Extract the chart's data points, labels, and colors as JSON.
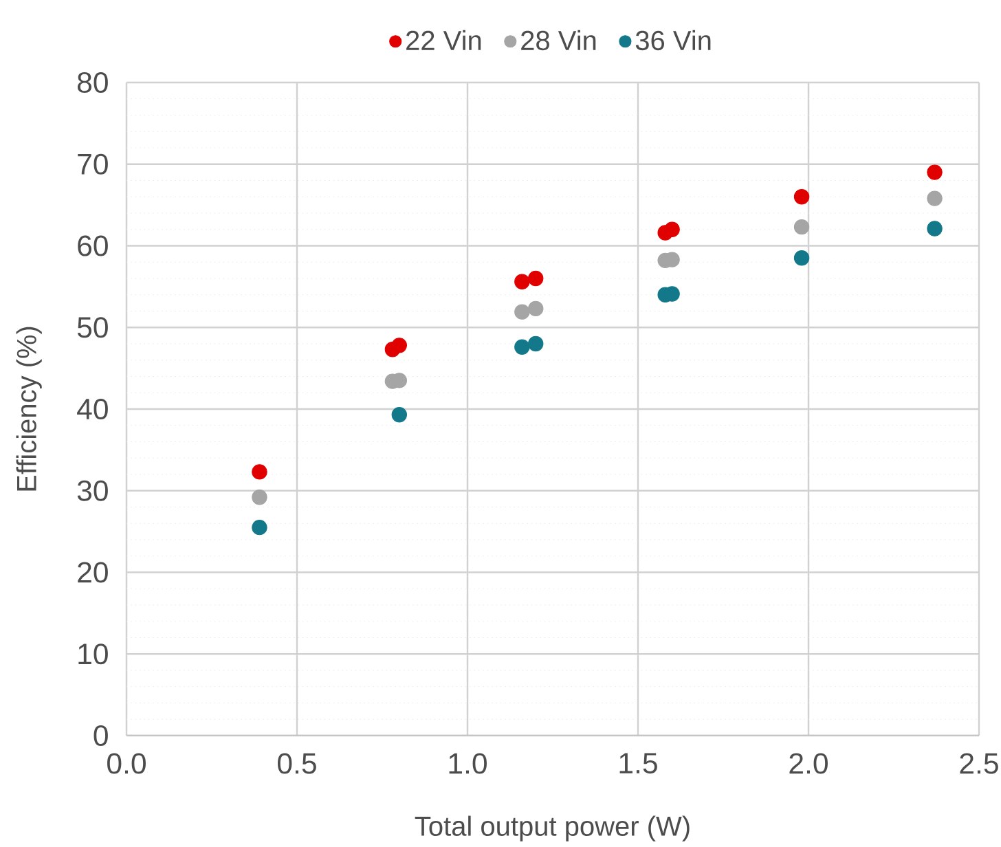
{
  "chart_data": {
    "type": "scatter",
    "xlabel": "Total output power (W)",
    "ylabel": "Efficiency (%)",
    "xlim": [
      0,
      2.5
    ],
    "xticks": [
      {
        "value": 0,
        "label": "0.0"
      },
      {
        "value": 0.5,
        "label": "0.5"
      },
      {
        "value": 1,
        "label": "1.0"
      },
      {
        "value": 1.5,
        "label": "1.5"
      },
      {
        "value": 2,
        "label": "2.0"
      },
      {
        "value": 2.5,
        "label": "2.5"
      }
    ],
    "ylim": [
      0,
      80
    ],
    "yticks": [
      0,
      10,
      20,
      30,
      40,
      50,
      60,
      70,
      80
    ],
    "grid": true,
    "legend": "top",
    "marker": "circle",
    "series": [
      {
        "name": "22 Vin",
        "color": "#e00000",
        "x": [
          0.39,
          0.78,
          0.8,
          1.16,
          1.2,
          1.58,
          1.6,
          1.98,
          2.37
        ],
        "values": [
          32.3,
          47.3,
          47.8,
          55.6,
          56.0,
          61.6,
          62.0,
          66.0,
          69.0
        ]
      },
      {
        "name": "28 Vin",
        "color": "#a5a5a5",
        "x": [
          0.39,
          0.78,
          0.8,
          1.16,
          1.2,
          1.58,
          1.6,
          1.98,
          2.37
        ],
        "values": [
          29.2,
          43.4,
          43.5,
          51.9,
          52.3,
          58.2,
          58.3,
          62.3,
          65.8
        ]
      },
      {
        "name": "36 Vin",
        "color": "#13798a",
        "x": [
          0.39,
          0.8,
          1.16,
          1.2,
          1.58,
          1.6,
          1.98,
          2.37
        ],
        "values": [
          25.5,
          39.3,
          47.6,
          48.0,
          54.0,
          54.1,
          58.5,
          62.1
        ]
      }
    ]
  }
}
